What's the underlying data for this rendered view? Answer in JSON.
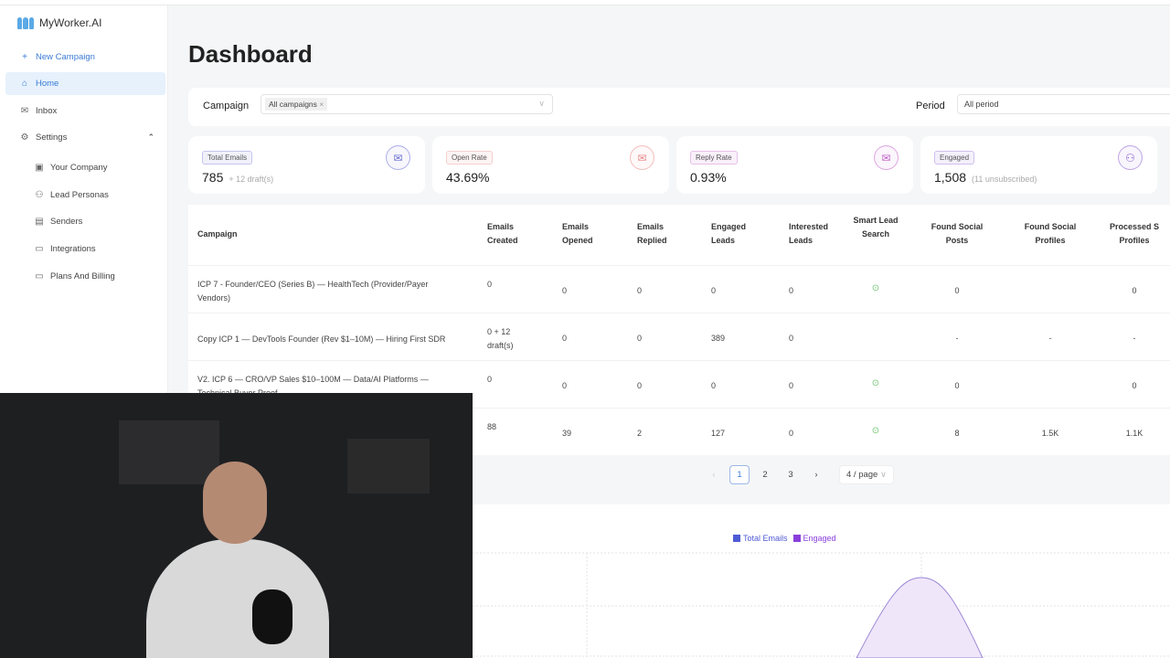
{
  "app": {
    "name": "MyWorker.AI"
  },
  "sidebar": {
    "items": [
      {
        "label": "New Campaign",
        "icon": "plus-icon"
      },
      {
        "label": "Home",
        "icon": "home-icon"
      },
      {
        "label": "Inbox",
        "icon": "mail-icon"
      },
      {
        "label": "Settings",
        "icon": "gear-icon"
      },
      {
        "label": "Your Company",
        "icon": "building-icon"
      },
      {
        "label": "Lead Personas",
        "icon": "users-icon"
      },
      {
        "label": "Senders",
        "icon": "sender-icon"
      },
      {
        "label": "Integrations",
        "icon": "card-icon"
      },
      {
        "label": "Plans And Billing",
        "icon": "card-icon"
      }
    ]
  },
  "page": {
    "title": "Dashboard"
  },
  "filters": {
    "campaign_label": "Campaign",
    "campaign_tag": "All campaigns",
    "period_label": "Period",
    "period_value": "All period"
  },
  "cards": [
    {
      "label": "Total Emails",
      "value": "785",
      "sub": "+ 12 draft(s)",
      "color": "#6b6fd4"
    },
    {
      "label": "Open Rate",
      "value": "43.69%",
      "sub": "",
      "color": "#e88a8a"
    },
    {
      "label": "Reply Rate",
      "value": "0.93%",
      "sub": "",
      "color": "#c261c9"
    },
    {
      "label": "Engaged",
      "value": "1,508",
      "sub": "(11 unsubscribed)",
      "color": "#8a5fd0"
    }
  ],
  "table": {
    "headers": [
      "Campaign",
      "Emails Created",
      "Emails Opened",
      "Emails Replied",
      "Engaged Leads",
      "Interested Leads",
      "Smart Lead Search",
      "Found Social Posts",
      "Found Social Profiles",
      "Processed S Profiles"
    ],
    "rows": [
      [
        "ICP 7 - Founder/CEO (Series B) — HealthTech (Provider/Payer Vendors)",
        "0",
        "0",
        "0",
        "0",
        "0",
        "check",
        "0",
        "",
        "0"
      ],
      [
        "Copy ICP 1 — DevTools Founder (Rev $1–10M) — Hiring First SDR",
        "0 + 12 draft(s)",
        "0",
        "0",
        "389",
        "0",
        "",
        "-",
        "-",
        "-"
      ],
      [
        "V2. ICP 6 — CRO/VP Sales $10–100M — Data/AI Platforms — Technical Buyer Proof",
        "0",
        "0",
        "0",
        "0",
        "0",
        "check",
        "0",
        "",
        "0"
      ],
      [
        "",
        "88",
        "39",
        "2",
        "127",
        "0",
        "check",
        "8",
        "1.5K",
        "1.1K"
      ]
    ]
  },
  "pagination": {
    "pages": [
      "1",
      "2",
      "3"
    ],
    "current": "1",
    "page_size": "4 / page"
  },
  "chart_data": {
    "type": "area",
    "series": [
      {
        "name": "Total Emails",
        "color": "#4f5bd5"
      },
      {
        "name": "Engaged",
        "color": "#8a3fdc"
      }
    ],
    "legend": "top",
    "grid": true
  }
}
